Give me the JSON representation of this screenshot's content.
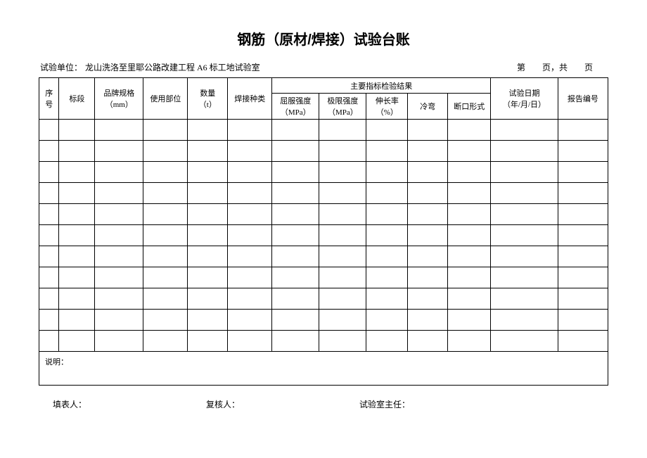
{
  "title": "钢筋（原材/焊接）试验台账",
  "header": {
    "unit_label": "试验单位：",
    "unit_value": "龙山洗洛至里耶公路改建工程 A6 标工地试验室",
    "page_info": "第　　页，共　　页"
  },
  "table": {
    "columns": {
      "seq": "序\n号",
      "section": "标段",
      "brand_spec": "品牌规格\n（mm）",
      "use_part": "使用部位",
      "quantity": "数量\n（t）",
      "weld_type": "焊接种类",
      "main_indicator_group": "主要指标检验结果",
      "yield_strength": "屈服强度\n（MPa）",
      "ultimate_strength": "极限强度\n（MPa）",
      "elongation": "伸长率\n（%）",
      "cold_bend": "冷弯",
      "fracture_form": "断口形式",
      "test_date": "试验日期\n（年/月/日）",
      "report_no": "报告编号"
    },
    "col_widths": {
      "seq": 28,
      "section": 50,
      "brand_spec": 68,
      "use_part": 62,
      "quantity": 56,
      "weld_type": 62,
      "yield_strength": 66,
      "ultimate_strength": 66,
      "elongation": 58,
      "cold_bend": 56,
      "fracture_form": 60,
      "test_date": 94,
      "report_no": 70
    },
    "row_count": 11,
    "remark_label": "说明："
  },
  "footer": {
    "preparer": "填表人：",
    "reviewer": "复核人：",
    "lab_head": "试验室主任："
  },
  "style": {
    "border_color": "#000000",
    "background": "#ffffff",
    "header_row1_height": 22,
    "header_row2_height": 34
  }
}
